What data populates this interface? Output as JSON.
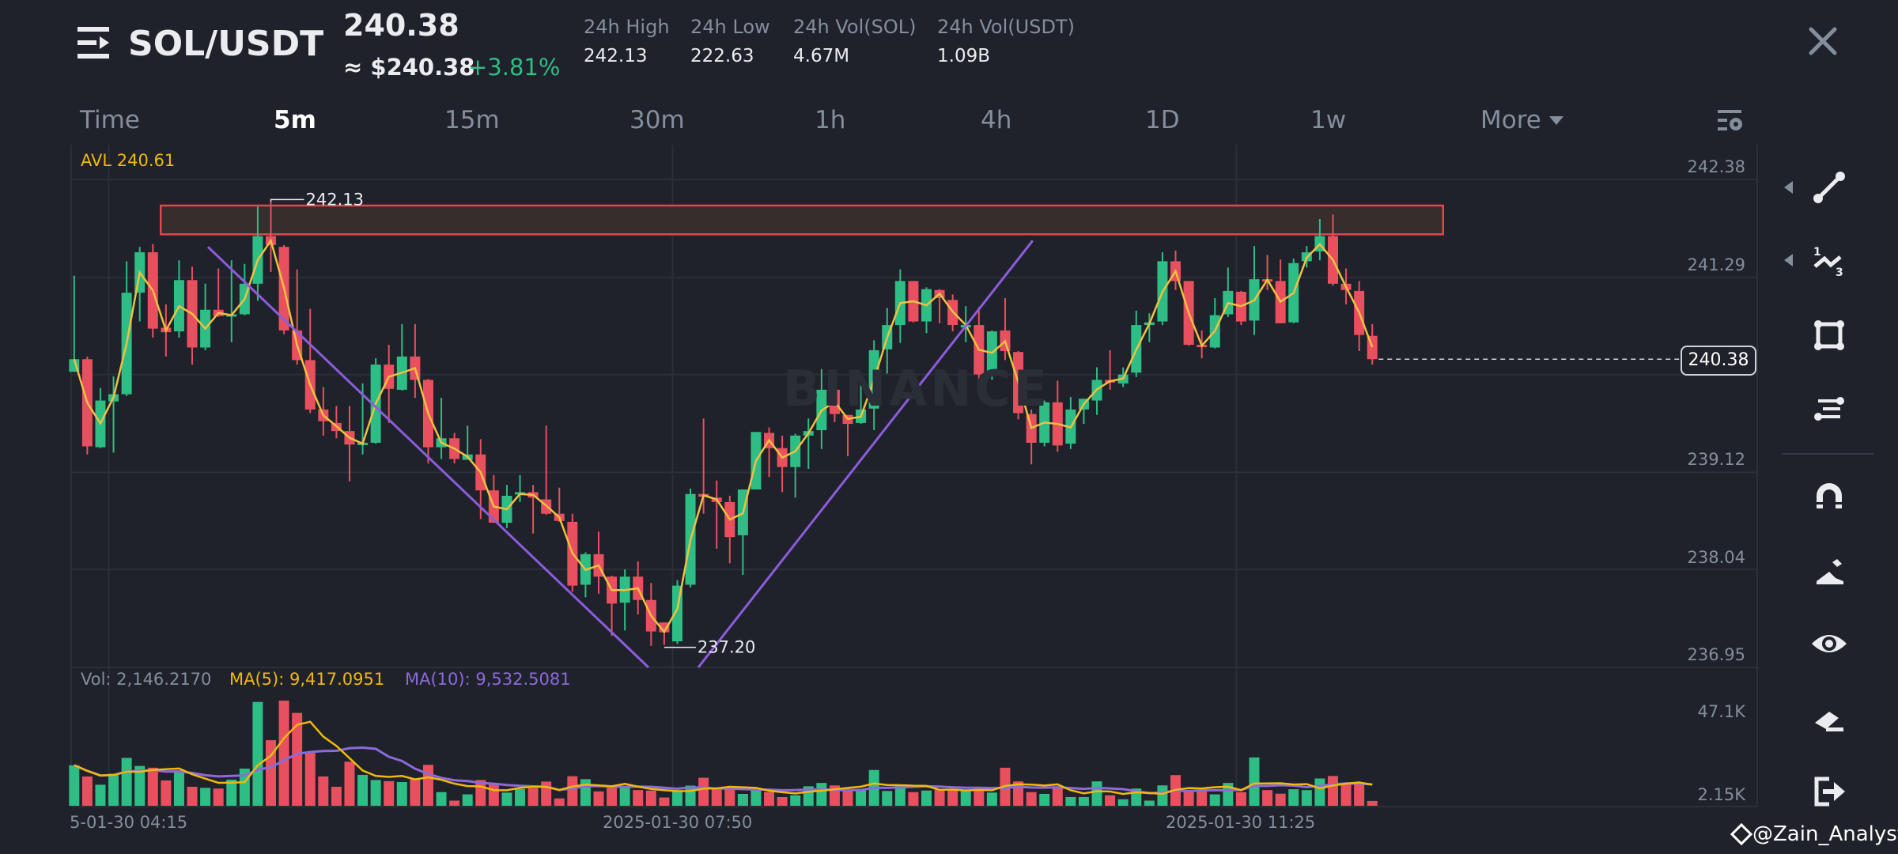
{
  "header": {
    "menu_icon": "menu-icon",
    "pair": "SOL/USDT",
    "last_price": "240.38",
    "approx_usd": "≈ $240.38",
    "change_pct": "+3.81%",
    "stats": [
      {
        "label": "24h High",
        "value": "242.13"
      },
      {
        "label": "24h Low",
        "value": "222.63"
      },
      {
        "label": "24h Vol(SOL)",
        "value": "4.67M"
      },
      {
        "label": "24h Vol(USDT)",
        "value": "1.09B"
      }
    ],
    "close_icon": "close-icon"
  },
  "tabs": [
    {
      "label": "Time"
    },
    {
      "label": "5m",
      "active": true
    },
    {
      "label": "15m"
    },
    {
      "label": "30m"
    },
    {
      "label": "1h"
    },
    {
      "label": "4h"
    },
    {
      "label": "1D"
    },
    {
      "label": "1w"
    },
    {
      "label": "More"
    }
  ],
  "toolbar": {
    "items": [
      "trend-line-icon",
      "fibonacci-icon",
      "rectangle-icon",
      "parallel-channel-icon",
      "magnet-icon",
      "draw-pencil-icon",
      "visibility-eye-icon",
      "eraser-icon",
      "exit-icon"
    ]
  },
  "colors": {
    "up": "#2ebd85",
    "down": "#e8505f",
    "ma5": "#f0b90b",
    "ma10": "#8c6ad8",
    "zone_border": "#e0464f",
    "trendline": "#8c5cdc",
    "background": "#1f222a"
  },
  "watermark": {
    "logo": "BINANCE",
    "credit": "@Zain_Analyst"
  },
  "chart_data": {
    "type": "candlestick",
    "interval": "5m",
    "avl_label": "AVL 240.61",
    "price_ticks": [
      "242.38",
      "241.29",
      "239.12",
      "238.04",
      "236.95"
    ],
    "grid_prices": [
      242.38,
      241.29,
      240.21,
      239.12,
      238.04,
      236.95
    ],
    "ylim": [
      236.95,
      242.38
    ],
    "current_price": "240.38",
    "high_label": {
      "text": "242.13",
      "index": 15
    },
    "low_label": {
      "text": "237.20",
      "index": 45
    },
    "x_ticks": [
      {
        "label": "5-01-30 04:15",
        "index": 3
      },
      {
        "label": "2025-01-30 07:50",
        "index": 46
      },
      {
        "label": "2025-01-30 11:25",
        "index": 89
      }
    ],
    "candles_ohlc": [
      [
        240.24,
        241.31,
        240.24,
        240.38
      ],
      [
        240.38,
        240.41,
        239.32,
        239.41
      ],
      [
        239.4,
        240.06,
        239.39,
        239.92
      ],
      [
        239.91,
        240.19,
        239.34,
        239.99
      ],
      [
        239.99,
        241.47,
        239.97,
        241.12
      ],
      [
        241.12,
        241.63,
        240.8,
        241.57
      ],
      [
        241.57,
        241.66,
        240.62,
        240.72
      ],
      [
        240.73,
        240.99,
        240.41,
        240.68
      ],
      [
        240.69,
        241.48,
        240.62,
        241.26
      ],
      [
        241.26,
        241.41,
        240.32,
        240.51
      ],
      [
        240.51,
        241.22,
        240.48,
        240.93
      ],
      [
        240.93,
        241.39,
        240.85,
        240.86
      ],
      [
        240.87,
        241.48,
        240.57,
        240.88
      ],
      [
        240.88,
        241.44,
        240.87,
        241.22
      ],
      [
        241.22,
        242.08,
        241.03,
        241.75
      ],
      [
        241.75,
        242.13,
        241.35,
        241.65
      ],
      [
        241.63,
        241.65,
        240.66,
        240.7
      ],
      [
        240.7,
        241.38,
        240.32,
        240.37
      ],
      [
        240.37,
        240.94,
        239.78,
        239.82
      ],
      [
        239.82,
        240.07,
        239.53,
        239.69
      ],
      [
        239.67,
        239.86,
        239.5,
        239.58
      ],
      [
        239.58,
        239.86,
        239.02,
        239.43
      ],
      [
        239.43,
        240.11,
        239.32,
        239.45
      ],
      [
        239.45,
        240.39,
        239.44,
        240.32
      ],
      [
        240.32,
        240.54,
        239.67,
        240.05
      ],
      [
        240.04,
        240.77,
        240.03,
        240.41
      ],
      [
        240.41,
        240.77,
        239.95,
        240.15
      ],
      [
        240.15,
        240.16,
        239.22,
        239.4
      ],
      [
        239.4,
        239.95,
        239.27,
        239.5
      ],
      [
        239.5,
        239.56,
        239.22,
        239.27
      ],
      [
        239.26,
        239.64,
        239.26,
        239.32
      ],
      [
        239.32,
        239.49,
        238.6,
        238.92
      ],
      [
        238.92,
        239.09,
        238.56,
        238.56
      ],
      [
        238.56,
        238.98,
        238.5,
        238.86
      ],
      [
        238.88,
        239.09,
        238.79,
        238.9
      ],
      [
        238.9,
        238.98,
        238.44,
        238.84
      ],
      [
        238.82,
        239.64,
        238.65,
        238.66
      ],
      [
        238.66,
        238.95,
        238.57,
        238.58
      ],
      [
        238.57,
        238.66,
        237.79,
        237.86
      ],
      [
        237.87,
        238.23,
        237.73,
        238.21
      ],
      [
        238.21,
        238.46,
        237.77,
        237.96
      ],
      [
        237.96,
        237.97,
        237.3,
        237.66
      ],
      [
        237.67,
        238.04,
        237.36,
        237.96
      ],
      [
        237.96,
        238.13,
        237.54,
        237.7
      ],
      [
        237.7,
        237.89,
        237.19,
        237.35
      ],
      [
        237.45,
        237.45,
        237.2,
        237.34
      ],
      [
        237.24,
        237.92,
        237.21,
        237.86
      ],
      [
        237.87,
        238.94,
        237.84,
        238.88
      ],
      [
        238.88,
        239.72,
        238.66,
        238.85
      ],
      [
        238.84,
        239.03,
        238.27,
        238.79
      ],
      [
        238.79,
        238.86,
        238.11,
        238.4
      ],
      [
        238.42,
        238.93,
        237.98,
        238.93
      ],
      [
        238.93,
        239.57,
        238.93,
        239.57
      ],
      [
        239.56,
        239.62,
        239.07,
        239.39
      ],
      [
        239.39,
        239.53,
        238.9,
        239.18
      ],
      [
        239.18,
        239.55,
        238.84,
        239.53
      ],
      [
        239.53,
        239.72,
        239.16,
        239.58
      ],
      [
        239.59,
        240.27,
        239.38,
        240.04
      ],
      [
        240.04,
        240.11,
        239.68,
        239.77
      ],
      [
        239.76,
        239.76,
        239.3,
        239.66
      ],
      [
        239.67,
        240.18,
        239.66,
        239.82
      ],
      [
        239.83,
        240.59,
        239.59,
        240.48
      ],
      [
        240.49,
        240.95,
        240.22,
        240.76
      ],
      [
        240.76,
        241.38,
        240.56,
        241.25
      ],
      [
        241.25,
        241.25,
        240.79,
        240.8
      ],
      [
        240.8,
        241.18,
        240.67,
        241.16
      ],
      [
        241.15,
        241.16,
        240.78,
        241.06
      ],
      [
        241.04,
        241.1,
        240.69,
        240.76
      ],
      [
        240.75,
        240.97,
        240.57,
        240.76
      ],
      [
        240.76,
        240.96,
        240.05,
        240.21
      ],
      [
        240.21,
        240.7,
        240.15,
        240.69
      ],
      [
        240.7,
        241.06,
        240.37,
        240.47
      ],
      [
        240.46,
        240.47,
        239.71,
        239.78
      ],
      [
        239.77,
        239.82,
        239.21,
        239.45
      ],
      [
        239.45,
        239.92,
        239.41,
        239.9
      ],
      [
        239.9,
        240.14,
        239.35,
        239.42
      ],
      [
        239.44,
        239.96,
        239.38,
        239.82
      ],
      [
        239.82,
        239.94,
        239.66,
        239.94
      ],
      [
        239.92,
        240.29,
        239.76,
        240.15
      ],
      [
        240.15,
        240.48,
        240.04,
        240.12
      ],
      [
        240.11,
        240.29,
        240.07,
        240.21
      ],
      [
        240.23,
        240.92,
        240.18,
        240.76
      ],
      [
        240.76,
        240.89,
        240.57,
        240.79
      ],
      [
        240.8,
        241.57,
        240.76,
        241.47
      ],
      [
        241.47,
        241.59,
        241.15,
        241.25
      ],
      [
        241.25,
        241.25,
        240.53,
        240.54
      ],
      [
        240.54,
        240.7,
        240.39,
        240.52
      ],
      [
        240.51,
        241.06,
        240.5,
        240.87
      ],
      [
        240.88,
        241.4,
        240.85,
        241.14
      ],
      [
        241.13,
        241.14,
        240.76,
        240.8
      ],
      [
        240.81,
        241.64,
        240.65,
        241.27
      ],
      [
        241.27,
        241.54,
        241.15,
        241.26
      ],
      [
        241.25,
        241.49,
        240.78,
        240.78
      ],
      [
        240.79,
        241.5,
        240.78,
        241.45
      ],
      [
        241.47,
        241.64,
        241.4,
        241.57
      ],
      [
        241.58,
        241.94,
        241.48,
        241.75
      ],
      [
        241.75,
        241.99,
        241.2,
        241.22
      ],
      [
        241.22,
        241.39,
        240.99,
        241.15
      ],
      [
        241.14,
        241.25,
        240.47,
        240.65
      ],
      [
        240.64,
        240.77,
        240.32,
        240.38
      ]
    ],
    "resistance_zone": {
      "price_low": 241.77,
      "price_high": 242.09,
      "from_index": 6.6,
      "to_index": 104.4
    },
    "trendlines": [
      {
        "from": [
          10.2,
          241.63
        ],
        "to": [
          43.8,
          236.95
        ]
      },
      {
        "from": [
          47.6,
          236.95
        ],
        "to": [
          73.1,
          241.7
        ]
      }
    ],
    "volume": {
      "label": "Vol: 2,146.2170",
      "ma5_label": "MA(5): 9,417.0951",
      "ma10_label": "MA(10): 9,532.5081",
      "ticks": [
        "47.1K",
        "2.15K"
      ],
      "unit": "K",
      "values": [
        18.1,
        13.1,
        9.4,
        14.3,
        21.4,
        17.8,
        17.0,
        11.3,
        15.8,
        8.5,
        8.0,
        7.7,
        11.7,
        16.6,
        46.4,
        29.3,
        47.0,
        41.5,
        23.6,
        13.1,
        8.5,
        19.7,
        13.8,
        11.5,
        11.0,
        10.6,
        12.1,
        18.3,
        6.1,
        2.3,
        5.1,
        11.5,
        9.9,
        5.9,
        7.5,
        8.0,
        10.8,
        3.3,
        13.2,
        11.9,
        6.4,
        8.7,
        8.7,
        7.0,
        6.8,
        3.7,
        6.4,
        9.0,
        12.5,
        7.3,
        7.3,
        5.3,
        7.6,
        6.2,
        3.9,
        4.7,
        8.7,
        10.2,
        9.1,
        7.3,
        7.3,
        16.0,
        6.6,
        8.8,
        6.1,
        6.8,
        7.3,
        7.3,
        6.8,
        7.3,
        5.9,
        17.0,
        10.9,
        6.1,
        5.3,
        8.5,
        3.9,
        3.9,
        10.9,
        4.7,
        2.9,
        7.7,
        2.3,
        9.1,
        13.7,
        6.8,
        6.8,
        5.1,
        10.2,
        6.1,
        21.6,
        7.0,
        5.4,
        7.4,
        7.0,
        12.2,
        13.3,
        9.6,
        9.9,
        2.15
      ]
    }
  }
}
